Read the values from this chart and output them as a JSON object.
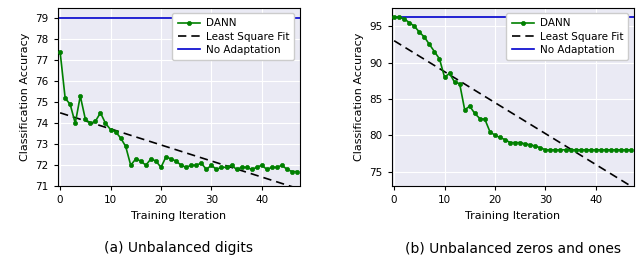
{
  "plot1": {
    "title": "(a) Unbalanced digits",
    "xlabel": "Training Iteration",
    "ylabel": "Classification Accuracy",
    "no_adaptation_y": 79.0,
    "ylim": [
      71,
      79.5
    ],
    "xlim": [
      -0.5,
      47.5
    ],
    "yticks": [
      71,
      72,
      73,
      74,
      75,
      76,
      77,
      78,
      79
    ],
    "xticks": [
      0,
      10,
      20,
      30,
      40
    ],
    "dann_x": [
      0,
      1,
      2,
      3,
      4,
      5,
      6,
      7,
      8,
      9,
      10,
      11,
      12,
      13,
      14,
      15,
      16,
      17,
      18,
      19,
      20,
      21,
      22,
      23,
      24,
      25,
      26,
      27,
      28,
      29,
      30,
      31,
      32,
      33,
      34,
      35,
      36,
      37,
      38,
      39,
      40,
      41,
      42,
      43,
      44,
      45,
      46,
      47
    ],
    "dann_y": [
      77.4,
      75.2,
      74.9,
      74.0,
      75.3,
      74.2,
      74.0,
      74.1,
      74.5,
      74.0,
      73.7,
      73.6,
      73.3,
      72.9,
      72.0,
      72.3,
      72.2,
      72.0,
      72.3,
      72.2,
      71.9,
      72.4,
      72.3,
      72.2,
      72.0,
      71.9,
      72.0,
      72.0,
      72.1,
      71.8,
      72.0,
      71.8,
      71.9,
      71.9,
      72.0,
      71.8,
      71.9,
      71.9,
      71.8,
      71.9,
      72.0,
      71.8,
      71.9,
      71.9,
      72.0,
      71.8,
      71.7,
      71.7
    ],
    "lsfit_x": [
      0,
      47
    ],
    "lsfit_y": [
      74.5,
      70.9
    ]
  },
  "plot2": {
    "title": "(b) Unbalanced zeros and ones",
    "xlabel": "Training Iteration",
    "ylabel": "Classification Accuracy",
    "no_adaptation_y": 96.3,
    "ylim": [
      73,
      97.5
    ],
    "xlim": [
      -0.5,
      47.5
    ],
    "yticks": [
      75,
      80,
      85,
      90,
      95
    ],
    "xticks": [
      0,
      10,
      20,
      30,
      40
    ],
    "dann_x": [
      0,
      1,
      2,
      3,
      4,
      5,
      6,
      7,
      8,
      9,
      10,
      11,
      12,
      13,
      14,
      15,
      16,
      17,
      18,
      19,
      20,
      21,
      22,
      23,
      24,
      25,
      26,
      27,
      28,
      29,
      30,
      31,
      32,
      33,
      34,
      35,
      36,
      37,
      38,
      39,
      40,
      41,
      42,
      43,
      44,
      45,
      46,
      47
    ],
    "dann_y": [
      96.2,
      96.2,
      96.0,
      95.5,
      95.0,
      94.2,
      93.5,
      92.5,
      91.5,
      90.5,
      88.0,
      88.5,
      87.3,
      87.1,
      83.5,
      84.0,
      83.0,
      82.3,
      82.2,
      80.5,
      80.0,
      79.7,
      79.4,
      79.0,
      79.0,
      79.0,
      78.8,
      78.7,
      78.5,
      78.3,
      78.0,
      78.0,
      78.0,
      78.0,
      78.0,
      78.0,
      78.0,
      78.0,
      78.0,
      78.0,
      78.0,
      78.0,
      78.0,
      78.0,
      78.0,
      78.0,
      78.0,
      78.0
    ],
    "lsfit_x": [
      0,
      47
    ],
    "lsfit_y": [
      93.0,
      73.0
    ]
  },
  "green_color": "#008000",
  "blue_color": "#0000cd",
  "black_color": "#000000",
  "bg_color": "#eaeaf4",
  "grid_color": "#ffffff",
  "title_fontsize": 10,
  "label_fontsize": 8,
  "tick_fontsize": 7.5,
  "legend_fontsize": 7.5,
  "line_width": 1.2,
  "marker_size": 3.0
}
